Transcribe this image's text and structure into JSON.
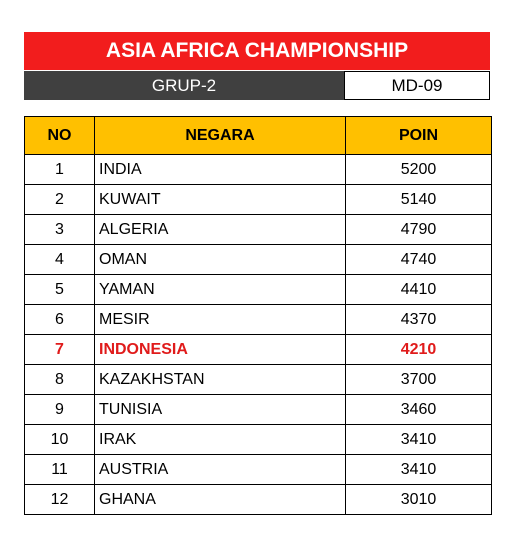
{
  "title": "ASIA AFRICA CHAMPIONSHIP",
  "group_label": "GRUP-2",
  "matchday": "MD-09",
  "colors": {
    "title_bg": "#f21d1d",
    "group_bg": "#404040",
    "header_bg": "#ffc000",
    "highlight": "#e01b1b"
  },
  "table": {
    "headers": {
      "no": "NO",
      "negara": "NEGARA",
      "poin": "POIN"
    },
    "rows": [
      {
        "no": "1",
        "negara": "INDIA",
        "poin": "5200",
        "highlight": false
      },
      {
        "no": "2",
        "negara": "KUWAIT",
        "poin": "5140",
        "highlight": false
      },
      {
        "no": "3",
        "negara": "ALGERIA",
        "poin": "4790",
        "highlight": false
      },
      {
        "no": "4",
        "negara": "OMAN",
        "poin": "4740",
        "highlight": false
      },
      {
        "no": "5",
        "negara": "YAMAN",
        "poin": "4410",
        "highlight": false
      },
      {
        "no": "6",
        "negara": "MESIR",
        "poin": "4370",
        "highlight": false
      },
      {
        "no": "7",
        "negara": "INDONESIA",
        "poin": "4210",
        "highlight": true
      },
      {
        "no": "8",
        "negara": "KAZAKHSTAN",
        "poin": "3700",
        "highlight": false
      },
      {
        "no": "9",
        "negara": "TUNISIA",
        "poin": "3460",
        "highlight": false
      },
      {
        "no": "10",
        "negara": "IRAK",
        "poin": "3410",
        "highlight": false
      },
      {
        "no": "11",
        "negara": "AUSTRIA",
        "poin": "3410",
        "highlight": false
      },
      {
        "no": "12",
        "negara": "GHANA",
        "poin": "3010",
        "highlight": false
      }
    ]
  }
}
